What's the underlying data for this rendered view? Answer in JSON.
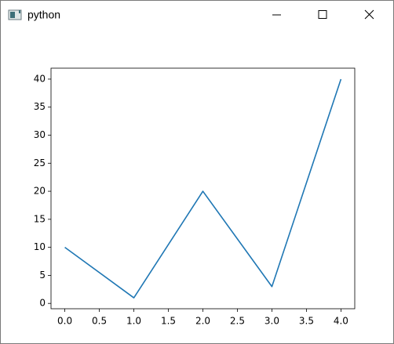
{
  "window": {
    "title": "python"
  },
  "chart_data": {
    "type": "line",
    "x": [
      0,
      1,
      2,
      3,
      4
    ],
    "series": [
      {
        "color": "#1f77b4",
        "values": [
          10,
          1,
          20,
          3,
          40
        ]
      }
    ],
    "xlim": [
      -0.2,
      4.2
    ],
    "ylim": [
      -0.95,
      41.95
    ],
    "xticks": [
      {
        "value": 0,
        "label": "0.0"
      },
      {
        "value": 0.5,
        "label": "0.5"
      },
      {
        "value": 1,
        "label": "1.0"
      },
      {
        "value": 1.5,
        "label": "1.5"
      },
      {
        "value": 2,
        "label": "2.0"
      },
      {
        "value": 2.5,
        "label": "2.5"
      },
      {
        "value": 3,
        "label": "3.0"
      },
      {
        "value": 3.5,
        "label": "3.5"
      },
      {
        "value": 4,
        "label": "4.0"
      }
    ],
    "yticks": [
      0,
      5,
      10,
      15,
      20,
      25,
      30,
      35,
      40
    ],
    "grid": false
  }
}
